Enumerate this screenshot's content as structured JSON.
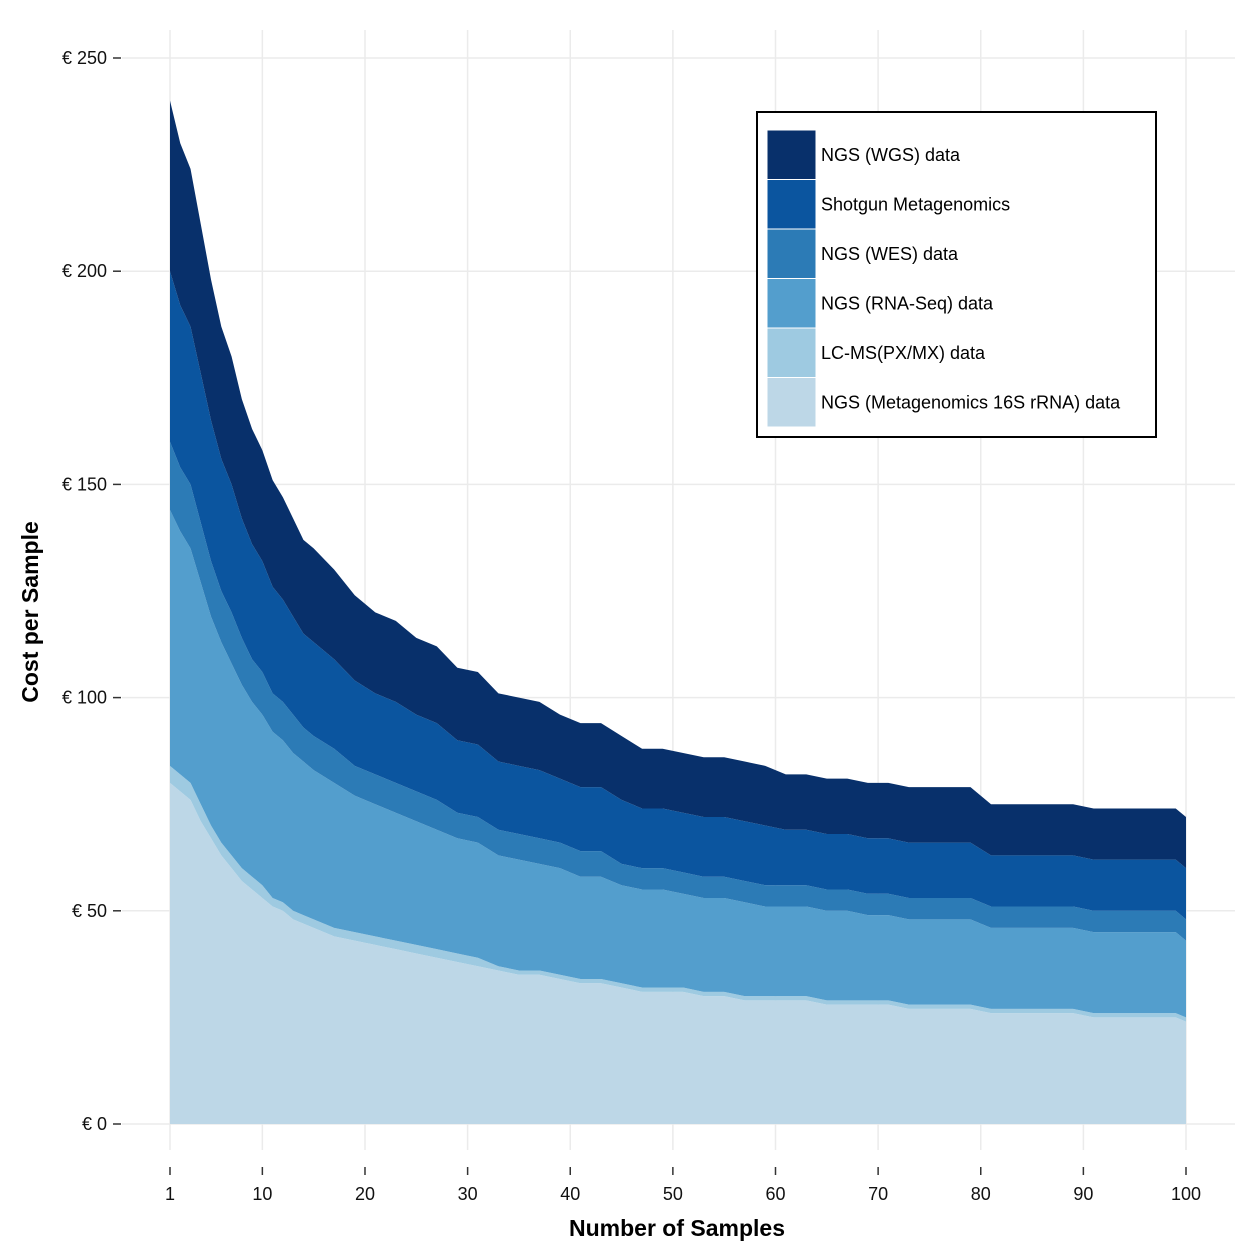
{
  "chart_data": {
    "type": "area",
    "stacked": true,
    "xlabel": "Number of Samples",
    "ylabel": "Cost per Sample",
    "xlim": [
      1,
      100
    ],
    "ylim": [
      0,
      250
    ],
    "x_ticks": [
      1,
      10,
      20,
      30,
      40,
      50,
      60,
      70,
      80,
      90,
      100
    ],
    "y_ticks": [
      0,
      50,
      100,
      150,
      200,
      250
    ],
    "y_tick_labels": [
      "€ 0",
      "€ 50",
      "€ 100",
      "€ 150",
      "€ 200",
      "€ 250"
    ],
    "x_tick_labels": [
      "1",
      "10",
      "20",
      "30",
      "40",
      "50",
      "60",
      "70",
      "80",
      "90",
      "100"
    ],
    "grid": true,
    "legend_position": "top-right",
    "x": [
      1,
      2,
      3,
      4,
      5,
      6,
      7,
      8,
      9,
      10,
      11,
      12,
      13,
      14,
      15,
      17,
      19,
      21,
      23,
      25,
      27,
      29,
      31,
      33,
      35,
      37,
      39,
      41,
      43,
      45,
      47,
      49,
      51,
      53,
      55,
      57,
      59,
      61,
      63,
      65,
      67,
      69,
      71,
      73,
      75,
      77,
      79,
      81,
      83,
      85,
      87,
      89,
      91,
      93,
      95,
      97,
      99,
      100
    ],
    "series": [
      {
        "name": "NGS (Metagenomics 16S rRNA) data",
        "color": "#bdd7e7",
        "values": [
          80,
          78,
          76,
          71,
          67,
          63,
          60,
          57,
          55,
          53,
          51,
          50,
          48,
          47,
          46,
          44,
          43,
          42,
          41,
          40,
          39,
          38,
          37,
          36,
          35,
          35,
          34,
          33,
          33,
          32,
          31,
          31,
          31,
          30,
          30,
          29,
          29,
          29,
          29,
          28,
          28,
          28,
          28,
          27,
          27,
          27,
          27,
          26,
          26,
          26,
          26,
          26,
          25,
          25,
          25,
          25,
          25,
          24
        ]
      },
      {
        "name": "LC-MS(PX/MX) data",
        "color": "#9ecae1",
        "values": [
          4,
          4,
          4,
          4,
          3,
          3,
          3,
          3,
          3,
          3,
          2,
          2,
          2,
          2,
          2,
          2,
          2,
          2,
          2,
          2,
          2,
          2,
          2,
          1,
          1,
          1,
          1,
          1,
          1,
          1,
          1,
          1,
          1,
          1,
          1,
          1,
          1,
          1,
          1,
          1,
          1,
          1,
          1,
          1,
          1,
          1,
          1,
          1,
          1,
          1,
          1,
          1,
          1,
          1,
          1,
          1,
          1,
          1
        ]
      },
      {
        "name": "NGS (RNA-Seq) data",
        "color": "#539ecd",
        "values": [
          60,
          57,
          55,
          52,
          49,
          47,
          45,
          43,
          41,
          40,
          39,
          38,
          37,
          36,
          35,
          34,
          32,
          31,
          30,
          29,
          28,
          27,
          27,
          26,
          26,
          25,
          25,
          24,
          24,
          23,
          23,
          23,
          22,
          22,
          22,
          22,
          21,
          21,
          21,
          21,
          21,
          20,
          20,
          20,
          20,
          20,
          20,
          19,
          19,
          19,
          19,
          19,
          19,
          19,
          19,
          19,
          19,
          18
        ]
      },
      {
        "name": "NGS (WES) data",
        "color": "#2c7bb6",
        "values": [
          16,
          15,
          15,
          14,
          13,
          12,
          12,
          11,
          10,
          10,
          9,
          9,
          9,
          8,
          8,
          8,
          7,
          7,
          7,
          7,
          7,
          6,
          6,
          6,
          6,
          6,
          6,
          6,
          6,
          5,
          5,
          5,
          5,
          5,
          5,
          5,
          5,
          5,
          5,
          5,
          5,
          5,
          5,
          5,
          5,
          5,
          5,
          5,
          5,
          5,
          5,
          5,
          5,
          5,
          5,
          5,
          5,
          5
        ]
      },
      {
        "name": "Shotgun Metagenomics",
        "color": "#0b559f",
        "values": [
          40,
          38,
          37,
          35,
          33,
          31,
          30,
          28,
          27,
          26,
          25,
          24,
          23,
          22,
          22,
          21,
          20,
          19,
          19,
          18,
          18,
          17,
          17,
          16,
          16,
          16,
          15,
          15,
          15,
          15,
          14,
          14,
          14,
          14,
          14,
          14,
          14,
          13,
          13,
          13,
          13,
          13,
          13,
          13,
          13,
          13,
          13,
          12,
          12,
          12,
          12,
          12,
          12,
          12,
          12,
          12,
          12,
          12
        ]
      },
      {
        "name": "NGS (WGS) data",
        "color": "#08306b",
        "values": [
          40,
          38,
          37,
          35,
          33,
          31,
          30,
          28,
          27,
          26,
          25,
          24,
          23,
          22,
          22,
          21,
          20,
          19,
          19,
          18,
          18,
          17,
          17,
          16,
          16,
          16,
          15,
          15,
          15,
          15,
          14,
          14,
          14,
          14,
          14,
          14,
          14,
          13,
          13,
          13,
          13,
          13,
          13,
          13,
          13,
          13,
          13,
          12,
          12,
          12,
          12,
          12,
          12,
          12,
          12,
          12,
          12,
          12
        ]
      }
    ]
  }
}
